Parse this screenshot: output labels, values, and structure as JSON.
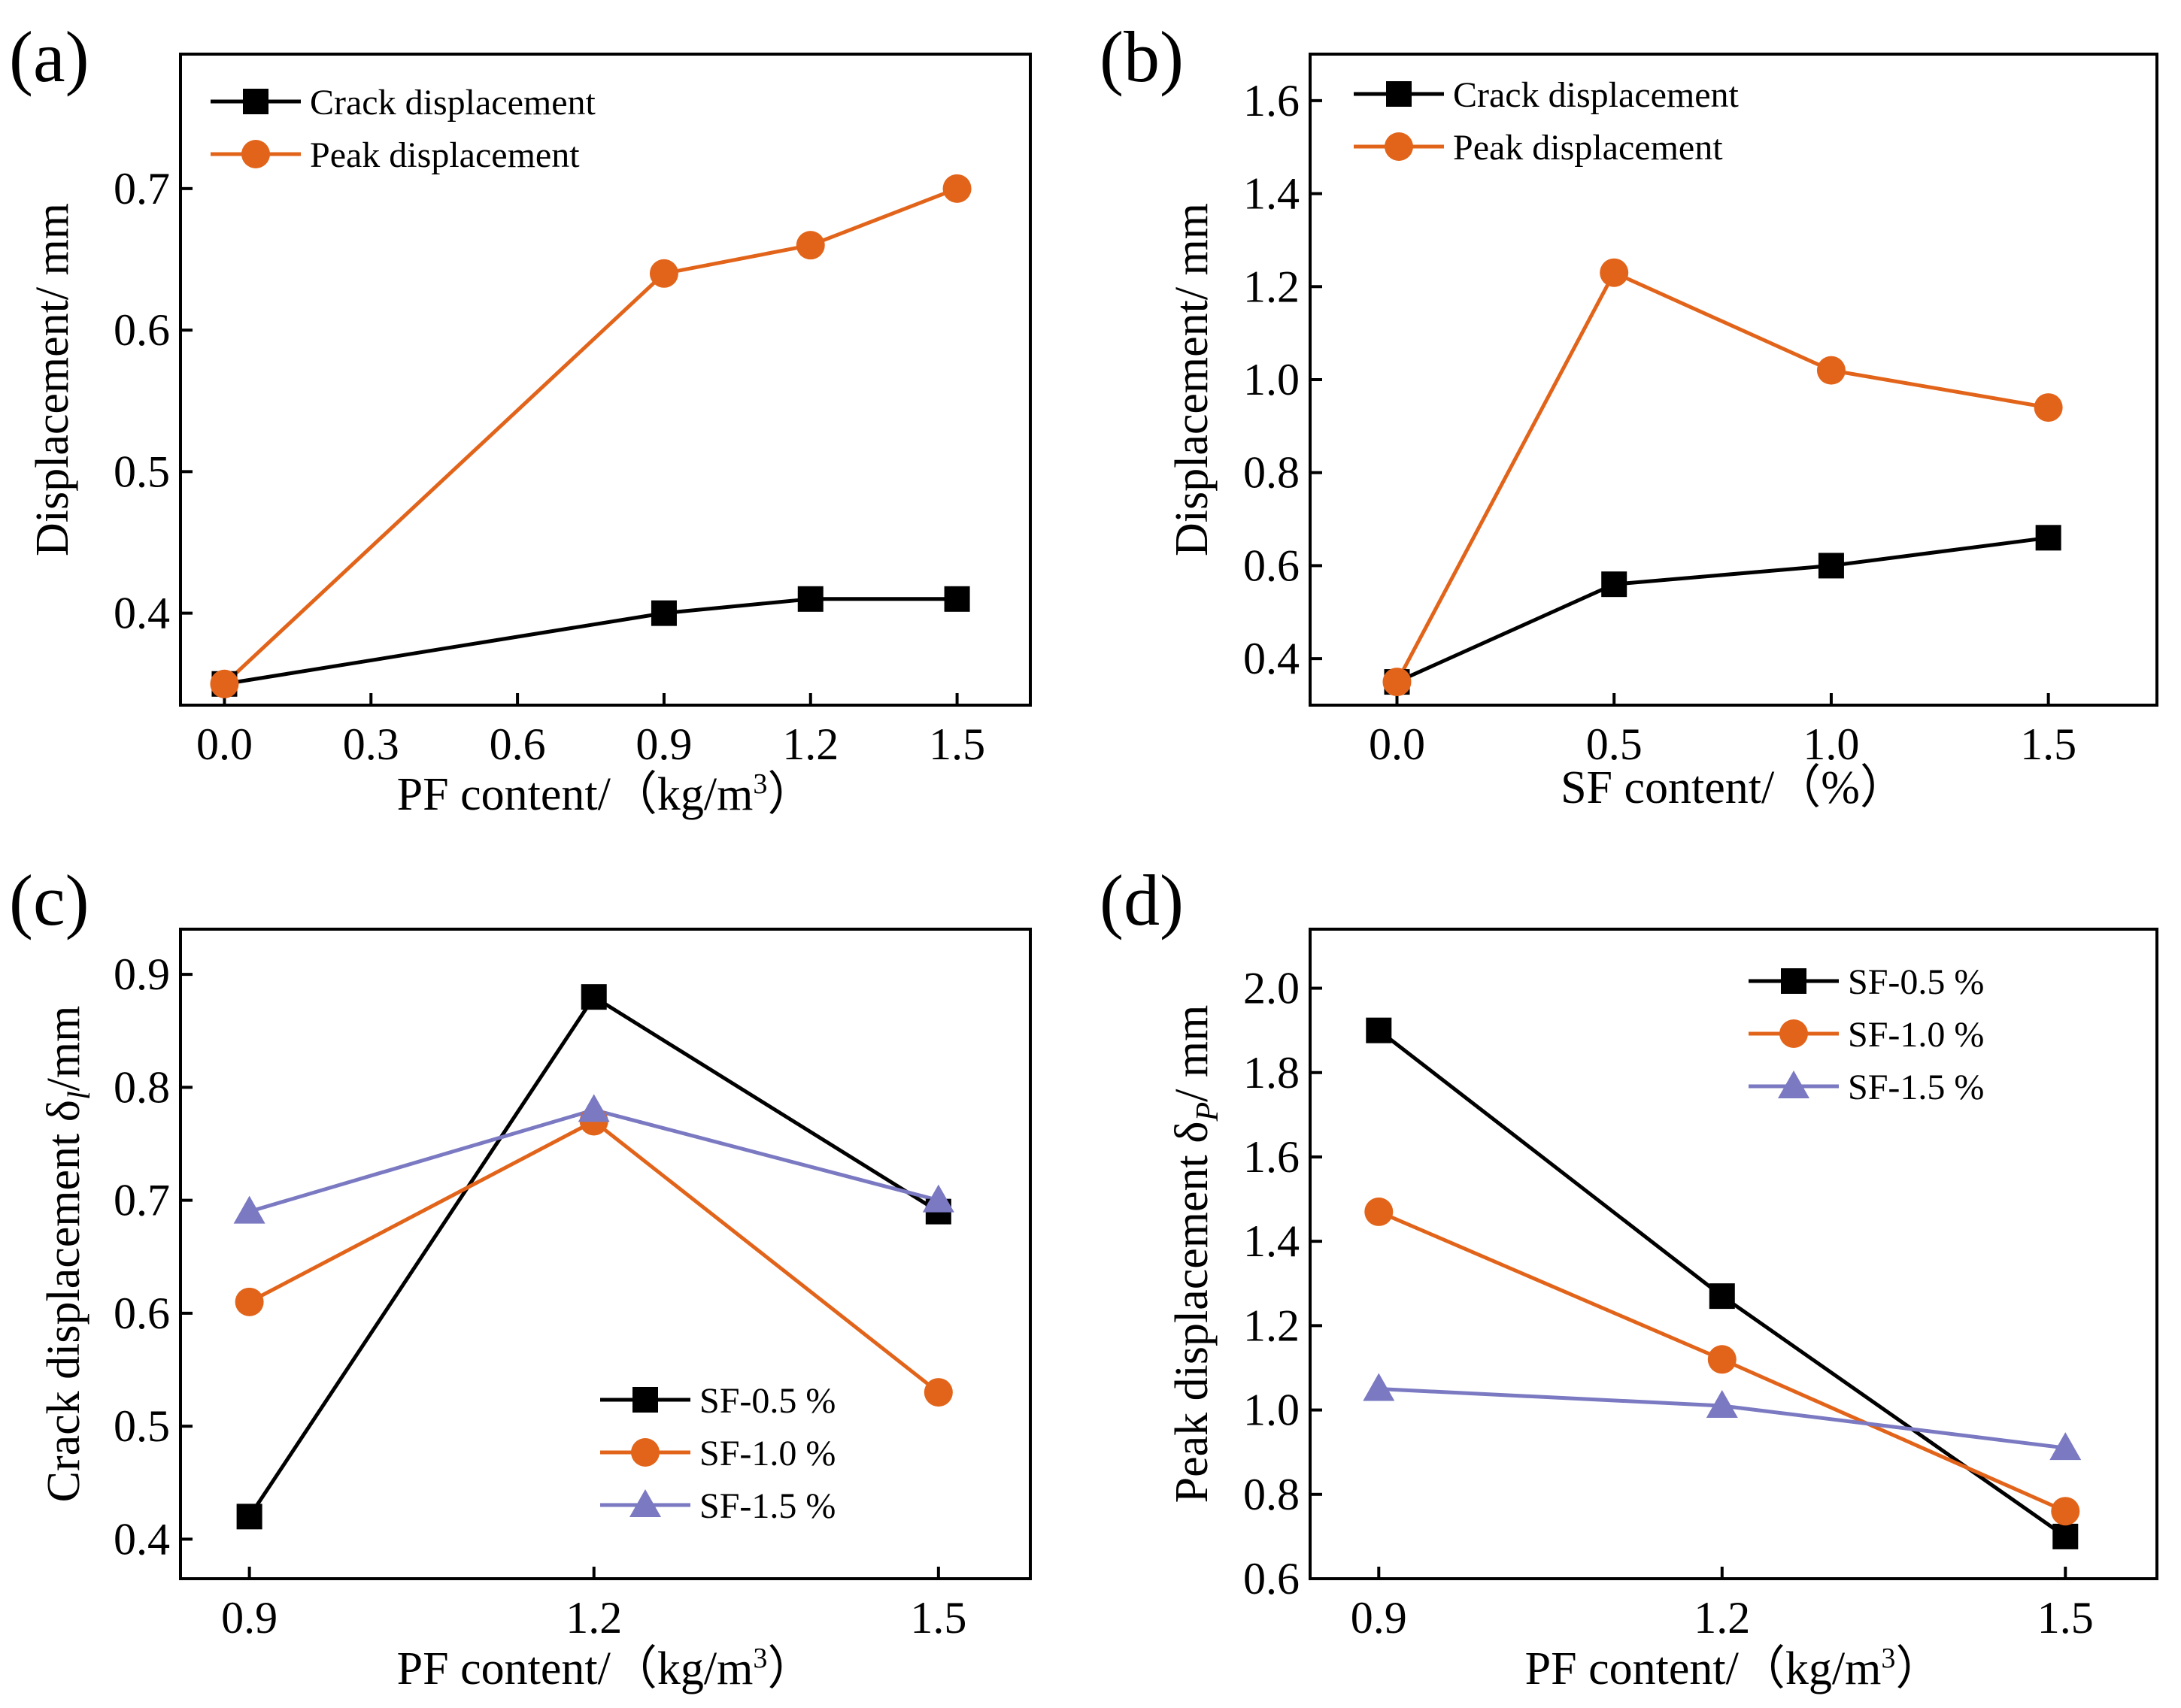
{
  "colors": {
    "black": "#000000",
    "orange": "#E2641A",
    "purple": "#7A79C2"
  },
  "chart_data": [
    {
      "type": "line",
      "panel_label": "(a)",
      "xlabel": "PF content/（kg/m",
      "xlabel_sup": "3",
      "xlabel_suffix": "）",
      "ylabel": "Displacement/ mm",
      "xlim": [
        -0.09,
        1.65
      ],
      "ylim": [
        0.335,
        0.795
      ],
      "xticks": [
        0.0,
        0.3,
        0.6,
        0.9,
        1.2,
        1.5
      ],
      "xtick_labels": [
        "0.0",
        "0.3",
        "0.6",
        "0.9",
        "1.2",
        "1.5"
      ],
      "yticks": [
        0.4,
        0.5,
        0.6,
        0.7
      ],
      "ytick_labels": [
        "0.4",
        "0.5",
        "0.6",
        "0.7"
      ],
      "legend_position": "top-left",
      "series": [
        {
          "name": "Crack displacement",
          "color": "black",
          "marker": "square",
          "x": [
            0.0,
            0.9,
            1.2,
            1.5
          ],
          "values": [
            0.35,
            0.4,
            0.41,
            0.41
          ]
        },
        {
          "name": "Peak displacement",
          "color": "orange",
          "marker": "circle",
          "x": [
            0.0,
            0.9,
            1.2,
            1.5
          ],
          "values": [
            0.35,
            0.64,
            0.66,
            0.7
          ]
        }
      ]
    },
    {
      "type": "line",
      "panel_label": "(b)",
      "xlabel": "SF content/（%）",
      "xlabel_sup": "",
      "xlabel_suffix": "",
      "ylabel": "Displacement/ mm",
      "xlim": [
        -0.2,
        1.75
      ],
      "ylim": [
        0.3,
        1.7
      ],
      "xticks": [
        0.0,
        0.5,
        1.0,
        1.5
      ],
      "xtick_labels": [
        "0.0",
        "0.5",
        "1.0",
        "1.5"
      ],
      "yticks": [
        0.4,
        0.6,
        0.8,
        1.0,
        1.2,
        1.4,
        1.6
      ],
      "ytick_labels": [
        "0.4",
        "0.6",
        "0.8",
        "1.0",
        "1.2",
        "1.4",
        "1.6"
      ],
      "legend_position": "top-left",
      "series": [
        {
          "name": "Crack displacement",
          "color": "black",
          "marker": "square",
          "x": [
            0.0,
            0.5,
            1.0,
            1.5
          ],
          "values": [
            0.35,
            0.56,
            0.6,
            0.66
          ]
        },
        {
          "name": "Peak displacement",
          "color": "orange",
          "marker": "circle",
          "x": [
            0.0,
            0.5,
            1.0,
            1.5
          ],
          "values": [
            0.35,
            1.23,
            1.02,
            0.94
          ]
        }
      ]
    },
    {
      "type": "line",
      "panel_label": "(c)",
      "xlabel": "PF content/（kg/m",
      "xlabel_sup": "3",
      "xlabel_suffix": "）",
      "ylabel": "Crack displacement δ",
      "ylabel_sub": "l",
      "ylabel_suffix": "/mm",
      "xlim": [
        0.84,
        1.58
      ],
      "ylim": [
        0.365,
        0.94
      ],
      "xticks": [
        0.9,
        1.2,
        1.5
      ],
      "xtick_labels": [
        "0.9",
        "1.2",
        "1.5"
      ],
      "yticks": [
        0.4,
        0.5,
        0.6,
        0.7,
        0.8,
        0.9
      ],
      "ytick_labels": [
        "0.4",
        "0.5",
        "0.6",
        "0.7",
        "0.8",
        "0.9"
      ],
      "legend_position": "bottom-right",
      "series": [
        {
          "name": "SF-0.5 %",
          "color": "black",
          "marker": "square",
          "x": [
            0.9,
            1.2,
            1.5
          ],
          "values": [
            0.42,
            0.88,
            0.69
          ]
        },
        {
          "name": "SF-1.0 %",
          "color": "orange",
          "marker": "circle",
          "x": [
            0.9,
            1.2,
            1.5
          ],
          "values": [
            0.61,
            0.77,
            0.53
          ]
        },
        {
          "name": "SF-1.5 %",
          "color": "purple",
          "marker": "triangle",
          "x": [
            0.9,
            1.2,
            1.5
          ],
          "values": [
            0.69,
            0.78,
            0.7
          ]
        }
      ]
    },
    {
      "type": "line",
      "panel_label": "(d)",
      "xlabel": "PF content/（kg/m",
      "xlabel_sup": "3",
      "xlabel_suffix": "）",
      "ylabel": "Peak displacement δ",
      "ylabel_sub": "P",
      "ylabel_suffix": "/ mm",
      "xlim": [
        0.84,
        1.58
      ],
      "ylim": [
        0.6,
        2.14
      ],
      "xticks": [
        0.9,
        1.2,
        1.5
      ],
      "xtick_labels": [
        "0.9",
        "1.2",
        "1.5"
      ],
      "yticks": [
        0.6,
        0.8,
        1.0,
        1.2,
        1.4,
        1.6,
        1.8,
        2.0
      ],
      "ytick_labels": [
        "0.6",
        "0.8",
        "1.0",
        "1.2",
        "1.4",
        "1.6",
        "1.8",
        "2.0"
      ],
      "legend_position": "top-right",
      "series": [
        {
          "name": "SF-0.5 %",
          "color": "black",
          "marker": "square",
          "x": [
            0.9,
            1.2,
            1.5
          ],
          "values": [
            1.9,
            1.27,
            0.7
          ]
        },
        {
          "name": "SF-1.0 %",
          "color": "orange",
          "marker": "circle",
          "x": [
            0.9,
            1.2,
            1.5
          ],
          "values": [
            1.47,
            1.12,
            0.76
          ]
        },
        {
          "name": "SF-1.5 %",
          "color": "purple",
          "marker": "triangle",
          "x": [
            0.9,
            1.2,
            1.5
          ],
          "values": [
            1.05,
            1.01,
            0.91
          ]
        }
      ]
    }
  ]
}
